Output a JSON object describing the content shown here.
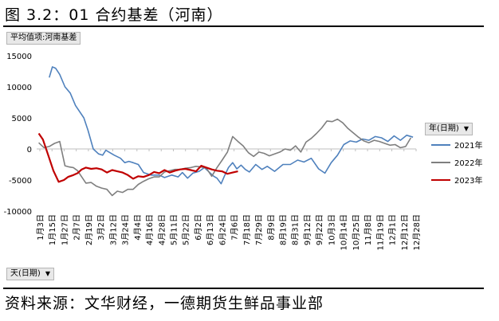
{
  "figure_title": "图 3.2：01 合约基差（河南）",
  "source_note": "资料来源：文华财经，一德期货生鲜品事业部",
  "pivot": {
    "values_button": "平均值项:河南基差",
    "column_field": "年(日期)",
    "row_field": "天(日期)"
  },
  "chart_data": {
    "type": "line",
    "title": "",
    "xlabel": "",
    "ylabel": "",
    "ylim": [
      -10000,
      15000
    ],
    "yticks": [
      -10000,
      -5000,
      0,
      5000,
      10000,
      15000
    ],
    "xticks": [
      "1月3日",
      "1月15日",
      "1月27日",
      "2月7日",
      "2月19日",
      "3月2日",
      "3月12日",
      "3月24日",
      "4月4日",
      "4月16日",
      "4月28日",
      "5月11日",
      "5月22日",
      "6月2日",
      "6月13日",
      "6月24日",
      "7月6日",
      "7月18日",
      "7月29日",
      "8月9日",
      "8月19日",
      "8月31日",
      "9月12日",
      "9月22日",
      "10月3日",
      "10月14日",
      "10月25日",
      "11月8日",
      "11月19日",
      "12月1日",
      "12月12日",
      "12月28日"
    ],
    "x_range_days": [
      3,
      365
    ],
    "grid": false,
    "legend_position": "right",
    "series": [
      {
        "name": "2021年",
        "color": "#4f81bd",
        "x": [
          15,
          18,
          21,
          25,
          30,
          35,
          40,
          48,
          52,
          57,
          62,
          66,
          69,
          72,
          77,
          83,
          87,
          91,
          95,
          100,
          105,
          112,
          120,
          125,
          132,
          138,
          142,
          147,
          152,
          158,
          163,
          168,
          172,
          175,
          179,
          182,
          186,
          190,
          194,
          198,
          202,
          206,
          212,
          218,
          223,
          230,
          238,
          245,
          252,
          258,
          265,
          272,
          278,
          284,
          290,
          296,
          302,
          308,
          314,
          320,
          326,
          332,
          338,
          344,
          350,
          356,
          362
        ],
        "y": [
          11500,
          13200,
          13000,
          12000,
          10000,
          9000,
          7000,
          5000,
          3000,
          0,
          -800,
          -1000,
          -200,
          -500,
          -1000,
          -1500,
          -2200,
          -2000,
          -2200,
          -2500,
          -3800,
          -4200,
          -4200,
          -4600,
          -4200,
          -4500,
          -3800,
          -4700,
          -3900,
          -3600,
          -3000,
          -3800,
          -4400,
          -4700,
          -5600,
          -4400,
          -3000,
          -2200,
          -3200,
          -2600,
          -3300,
          -3700,
          -2500,
          -3300,
          -2800,
          -3600,
          -2500,
          -2500,
          -1800,
          -2100,
          -1500,
          -3200,
          -3900,
          -2200,
          -1000,
          700,
          1300,
          1100,
          1600,
          1400,
          2000,
          1800,
          1200,
          2100,
          1400,
          2200,
          1900
        ]
      },
      {
        "name": "2022年",
        "color": "#7f7f7f",
        "x": [
          5,
          10,
          15,
          20,
          25,
          30,
          34,
          38,
          42,
          46,
          50,
          55,
          60,
          65,
          70,
          75,
          80,
          85,
          90,
          95,
          100,
          105,
          110,
          115,
          120,
          125,
          130,
          135,
          140,
          145,
          150,
          155,
          160,
          165,
          170,
          175,
          180,
          185,
          190,
          195,
          200,
          205,
          210,
          215,
          220,
          225,
          230,
          235,
          240,
          245,
          250,
          255,
          260,
          265,
          270,
          275,
          280,
          285,
          290,
          295,
          300,
          305,
          310,
          315,
          320,
          325,
          330,
          335,
          340,
          345,
          350,
          355,
          360
        ],
        "y": [
          1000,
          200,
          400,
          900,
          1200,
          -2700,
          -2900,
          -3000,
          -3500,
          -4500,
          -5500,
          -5400,
          -6000,
          -6300,
          -6500,
          -7500,
          -6800,
          -7000,
          -6500,
          -6500,
          -5700,
          -5200,
          -4800,
          -4500,
          -4500,
          -3700,
          -3500,
          -3300,
          -3300,
          -3100,
          -3000,
          -2800,
          -2900,
          -3100,
          -4400,
          -3000,
          -1800,
          -500,
          2000,
          1200,
          500,
          -600,
          -1200,
          -500,
          -700,
          -1100,
          -800,
          -500,
          0,
          -200,
          500,
          -500,
          1100,
          1700,
          2500,
          3400,
          4500,
          4400,
          4800,
          4200,
          3300,
          2600,
          1900,
          1300,
          1000,
          1400,
          1200,
          900,
          600,
          700,
          200,
          400,
          1800
        ]
      },
      {
        "name": "2023年",
        "color": "#c00000",
        "x": [
          5,
          9,
          14,
          19,
          24,
          29,
          33,
          38,
          42,
          46,
          50,
          55,
          60,
          65,
          70,
          75,
          80,
          85,
          90,
          95,
          100,
          105,
          110,
          115,
          120,
          125,
          130,
          135,
          140,
          145,
          150,
          155,
          160,
          165,
          170,
          175,
          180,
          185,
          190,
          195
        ],
        "y": [
          2500,
          1500,
          -1000,
          -3500,
          -5300,
          -5000,
          -4500,
          -4200,
          -3900,
          -3300,
          -3000,
          -3200,
          -3100,
          -3300,
          -3800,
          -3400,
          -3600,
          -3800,
          -4200,
          -4800,
          -4400,
          -4500,
          -4200,
          -3700,
          -3900,
          -3400,
          -3800,
          -3500,
          -3300,
          -3200,
          -3400,
          -3600,
          -2700,
          -3000,
          -3300,
          -3500,
          -3600,
          -4000,
          -3800,
          -3600
        ]
      }
    ]
  }
}
